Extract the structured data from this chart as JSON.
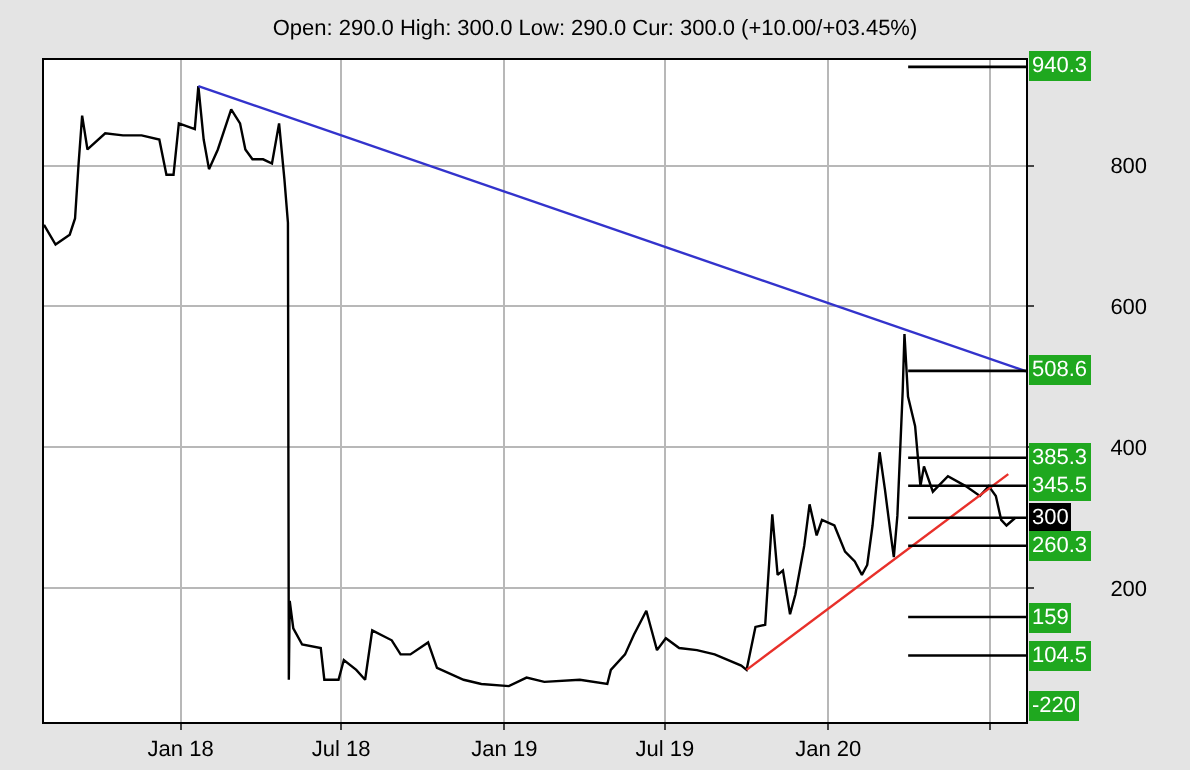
{
  "chart_data": {
    "type": "line",
    "title": "Open: 290.0 High: 300.0 Low: 290.0 Cur: 300.0 (+10.00/+03.45%)",
    "xlim": [
      "2017-07-31",
      "2020-08-11"
    ],
    "xticks": [
      {
        "value": "2018-01-01",
        "label": "Jan 18"
      },
      {
        "value": "2018-07-01",
        "label": "Jul 18"
      },
      {
        "value": "2019-01-01",
        "label": "Jan 19"
      },
      {
        "value": "2019-07-01",
        "label": "Jul 19"
      },
      {
        "value": "2020-01-01",
        "label": "Jan 20"
      },
      {
        "value": "2020-07-01",
        "label": null
      }
    ],
    "ylim": [
      10,
      950
    ],
    "yticks": [
      200,
      400,
      600,
      800
    ],
    "grid": true,
    "series": [
      {
        "color": "#000000",
        "x": [
          "2017-07-31",
          "2017-08-13",
          "2017-08-29",
          "2017-09-04",
          "2017-09-08",
          "2017-09-12",
          "2017-09-18",
          "2017-10-08",
          "2017-10-28",
          "2017-11-18",
          "2017-12-08",
          "2017-12-16",
          "2017-12-24",
          "2017-12-30",
          "2018-01-17",
          "2018-01-21",
          "2018-01-27",
          "2018-02-02",
          "2018-02-12",
          "2018-02-27",
          "2018-03-09",
          "2018-03-15",
          "2018-03-23",
          "2018-04-04",
          "2018-04-14",
          "2018-04-22",
          "2018-04-28",
          "2018-05-02",
          "2018-05-03",
          "2018-05-04",
          "2018-05-08",
          "2018-05-18",
          "2018-06-08",
          "2018-06-12",
          "2018-06-28",
          "2018-07-04",
          "2018-07-18",
          "2018-07-28",
          "2018-08-05",
          "2018-08-27",
          "2018-09-06",
          "2018-09-17",
          "2018-10-07",
          "2018-10-17",
          "2018-11-16",
          "2018-12-06",
          "2019-01-06",
          "2019-01-26",
          "2019-02-15",
          "2019-03-27",
          "2019-04-27",
          "2019-05-01",
          "2019-05-17",
          "2019-05-27",
          "2019-06-10",
          "2019-06-16",
          "2019-06-22",
          "2019-07-02",
          "2019-07-17",
          "2019-08-06",
          "2019-08-26",
          "2019-09-25",
          "2019-10-01",
          "2019-10-11",
          "2019-10-22",
          "2019-10-30",
          "2019-11-05",
          "2019-11-11",
          "2019-11-19",
          "2019-11-25",
          "2019-12-05",
          "2019-12-11",
          "2019-12-19",
          "2019-12-25",
          "2020-01-08",
          "2020-01-20",
          "2020-01-31",
          "2020-02-08",
          "2020-02-14",
          "2020-02-20",
          "2020-02-28",
          "2020-03-05",
          "2020-03-11",
          "2020-03-15",
          "2020-03-19",
          "2020-03-25",
          "2020-03-27",
          "2020-03-31",
          "2020-04-08",
          "2020-04-14",
          "2020-04-18",
          "2020-04-28",
          "2020-05-15",
          "2020-06-04",
          "2020-06-20",
          "2020-06-30",
          "2020-07-08",
          "2020-07-14",
          "2020-07-20",
          "2020-07-30"
        ],
        "values": [
          716,
          688,
          702,
          725,
          803,
          871,
          823,
          846,
          843,
          843,
          837,
          787,
          787,
          860,
          852,
          913,
          837,
          795,
          823,
          880,
          860,
          823,
          809,
          809,
          803,
          860,
          781,
          719,
          70,
          182,
          143,
          120,
          115,
          70,
          70,
          98,
          84,
          70,
          140,
          126,
          106,
          106,
          123,
          87,
          70,
          64,
          61,
          73,
          67,
          70,
          64,
          84,
          106,
          134,
          168,
          140,
          112,
          129,
          115,
          112,
          106,
          90,
          84,
          145,
          148,
          305,
          219,
          225,
          163,
          191,
          260,
          319,
          275,
          297,
          289,
          252,
          238,
          219,
          233,
          289,
          393,
          340,
          281,
          244,
          303,
          480,
          561,
          472,
          430,
          345,
          373,
          337,
          359,
          345,
          331,
          345,
          331,
          297,
          289,
          300
        ]
      },
      {
        "color": "#3333cc",
        "x": [
          "2018-01-21",
          "2020-08-11"
        ],
        "values": [
          913,
          508
        ]
      },
      {
        "color": "#e8302a",
        "x": [
          "2019-10-01",
          "2020-07-22"
        ],
        "values": [
          84,
          362
        ]
      }
    ],
    "ref_lines": [
      {
        "axis": "y",
        "value": 940.3,
        "label": "940.3"
      },
      {
        "axis": "y",
        "value": 508.6,
        "label": "508.6"
      },
      {
        "axis": "y",
        "value": 385.3,
        "label": "385.3"
      },
      {
        "axis": "y",
        "value": 345.5,
        "label": "345.5"
      },
      {
        "axis": "y",
        "value": 300,
        "label": "300"
      },
      {
        "axis": "y",
        "value": 260.3,
        "label": "260.3"
      },
      {
        "axis": "y",
        "value": 159,
        "label": "159"
      },
      {
        "axis": "y",
        "value": 104.5,
        "label": "104.5"
      }
    ],
    "annotations": [
      "-220"
    ]
  }
}
